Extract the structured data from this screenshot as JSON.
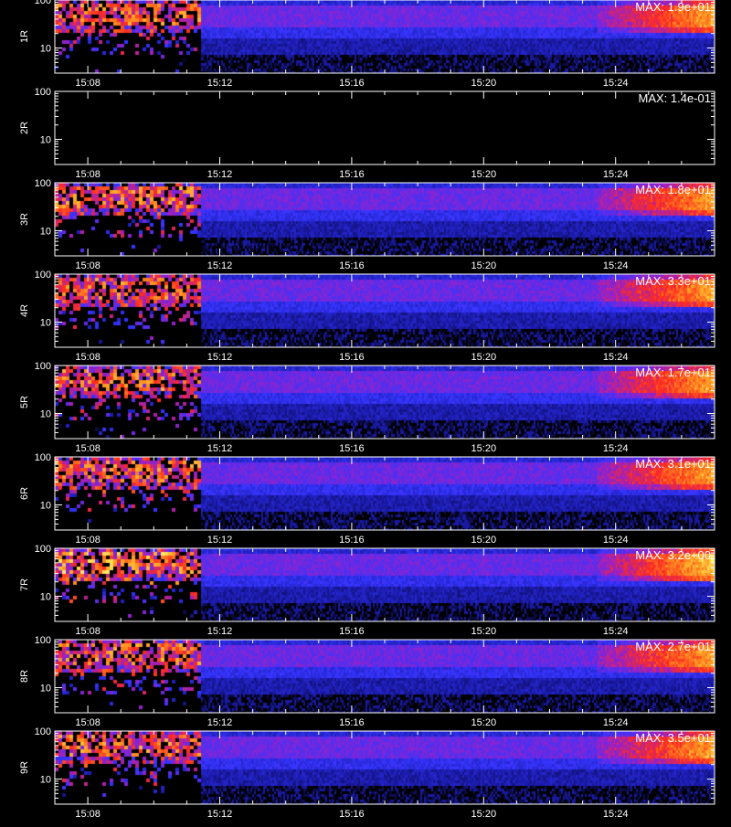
{
  "chart_data": [
    {
      "type": "heatmap",
      "panel": "1R",
      "max_label": "MAX: 1.9e+01",
      "max_value": 19,
      "x_ticks": [
        "15:08",
        "15:12",
        "15:16",
        "15:20",
        "15:24"
      ],
      "y_ticks": [
        "100",
        "10"
      ],
      "has_data": true
    },
    {
      "type": "heatmap",
      "panel": "2R",
      "max_label": "MAX: 1.4e-01",
      "max_value": 0.14,
      "x_ticks": [
        "15:08",
        "15:12",
        "15:16",
        "15:20",
        "15:24"
      ],
      "y_ticks": [
        "100",
        "10"
      ],
      "has_data": false
    },
    {
      "type": "heatmap",
      "panel": "3R",
      "max_label": "MAX: 1.8e+01",
      "max_value": 18,
      "x_ticks": [
        "15:08",
        "15:12",
        "15:16",
        "15:20",
        "15:24"
      ],
      "y_ticks": [
        "100",
        "10"
      ],
      "has_data": true
    },
    {
      "type": "heatmap",
      "panel": "4R",
      "max_label": "MAX: 3.3e+01",
      "max_value": 33,
      "x_ticks": [
        "15:08",
        "15:12",
        "15:16",
        "15:20",
        "15:24"
      ],
      "y_ticks": [
        "100",
        "10"
      ],
      "has_data": true
    },
    {
      "type": "heatmap",
      "panel": "5R",
      "max_label": "MAX: 1.7e+01",
      "max_value": 17,
      "x_ticks": [
        "15:08",
        "15:12",
        "15:16",
        "15:20",
        "15:24"
      ],
      "y_ticks": [
        "100",
        "10"
      ],
      "has_data": true
    },
    {
      "type": "heatmap",
      "panel": "6R",
      "max_label": "MAX: 3.1e+01",
      "max_value": 31,
      "x_ticks": [
        "15:08",
        "15:12",
        "15:16",
        "15:20",
        "15:24"
      ],
      "y_ticks": [
        "100",
        "10"
      ],
      "has_data": true
    },
    {
      "type": "heatmap",
      "panel": "7R",
      "max_label": "MAX: 3.2e+00",
      "max_value": 3.2,
      "x_ticks": [
        "15:08",
        "15:12",
        "15:16",
        "15:20",
        "15:24"
      ],
      "y_ticks": [
        "100",
        "10"
      ],
      "has_data": true
    },
    {
      "type": "heatmap",
      "panel": "8R",
      "max_label": "MAX: 2.7e+01",
      "max_value": 27,
      "x_ticks": [
        "15:08",
        "15:12",
        "15:16",
        "15:20",
        "15:24"
      ],
      "y_ticks": [
        "100",
        "10"
      ],
      "has_data": true
    },
    {
      "type": "heatmap",
      "panel": "9R",
      "max_label": "MAX: 3.5e+01",
      "max_value": 35,
      "x_ticks": [
        "15:08",
        "15:12",
        "15:16",
        "15:20",
        "15:24"
      ],
      "y_ticks": [
        "100",
        "10"
      ],
      "has_data": true
    }
  ],
  "x_axis": {
    "start": "15:07:00",
    "end": "15:27:00",
    "tick_values": [
      "15:08",
      "15:12",
      "15:16",
      "15:20",
      "15:24"
    ],
    "minor_per_major": 4
  },
  "y_axis": {
    "scale": "log",
    "range": [
      3,
      100
    ],
    "tick_values": [
      100,
      10
    ]
  },
  "colors": {
    "background": "#000000",
    "frame": "#ffffff",
    "text": "#ffffff",
    "colormap": [
      "#000000",
      "#1a1aa8",
      "#3535ff",
      "#9a20c8",
      "#ff2a20",
      "#ff9a20",
      "#ffff70"
    ]
  }
}
